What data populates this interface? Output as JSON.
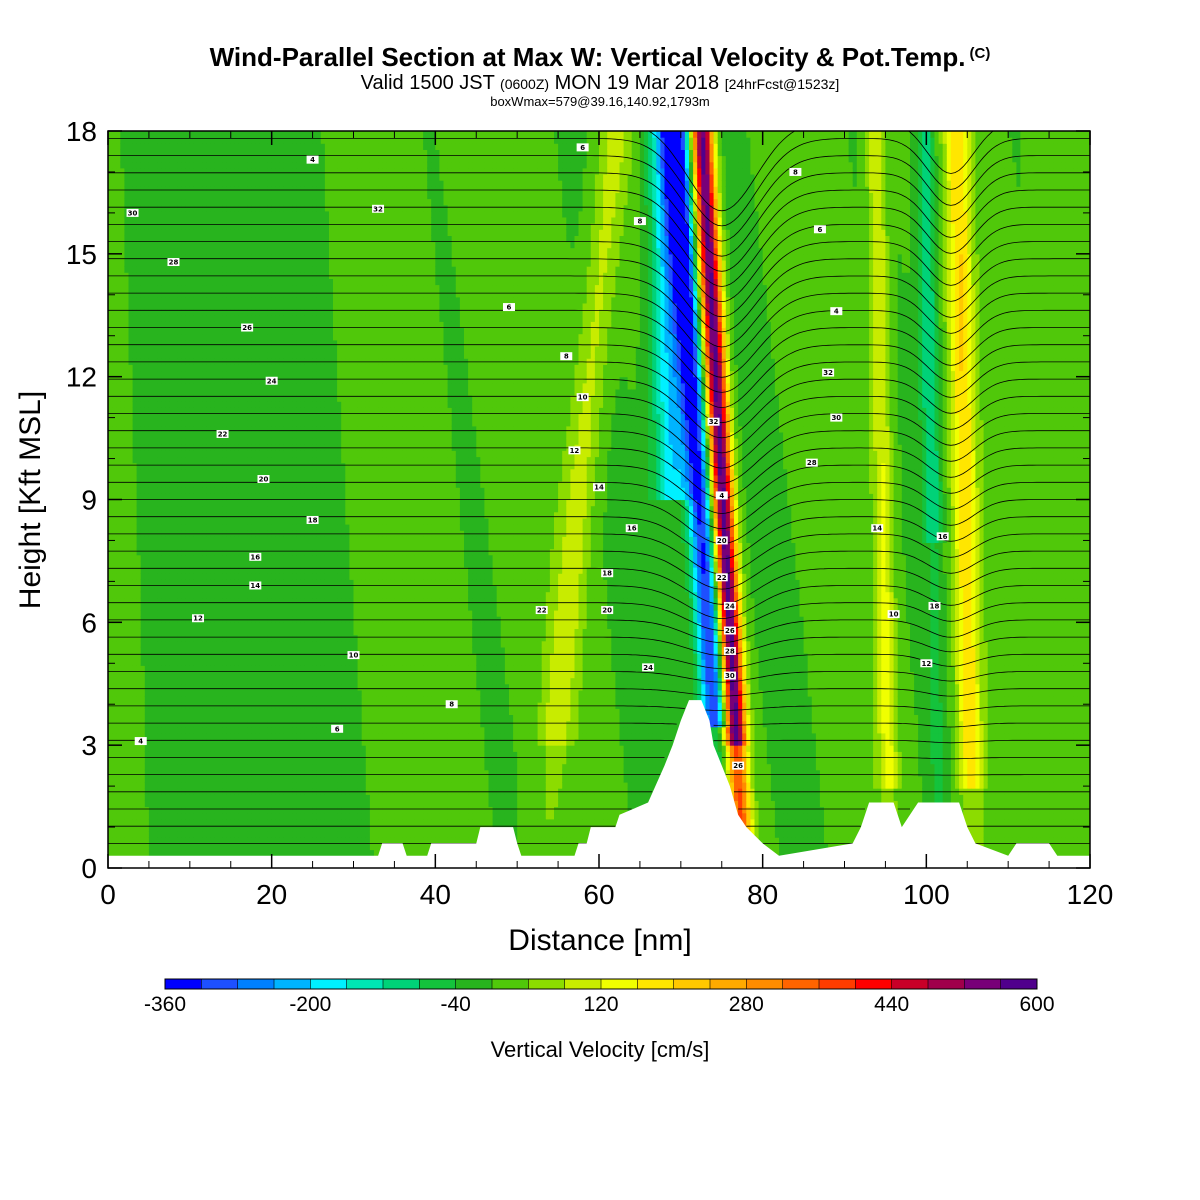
{
  "header": {
    "title": "Wind-Parallel Section at Max W: Vertical Velocity & Pot.Temp.",
    "copyright": "(C)",
    "valid_prefix": "Valid 1500 JST",
    "valid_z": "(0600Z)",
    "valid_date": "MON 19 Mar 2018",
    "forecast": "[24hrFcst@1523z]",
    "boxwmax": "boxWmax=579@39.16,140.92,1793m"
  },
  "chart_data": {
    "type": "heatmap",
    "xlabel": "Distance [nm]",
    "ylabel": "Height [Kft MSL]",
    "xlim": [
      0,
      120
    ],
    "ylim": [
      0,
      18
    ],
    "x_ticks": [
      0,
      20,
      40,
      60,
      80,
      100,
      120
    ],
    "y_ticks": [
      0,
      3,
      6,
      9,
      12,
      15,
      18
    ],
    "colorbar": {
      "title": "Vertical Velocity [cm/s]",
      "range": [
        -360,
        600
      ],
      "step": 40,
      "tick_labels": [
        -360,
        -200,
        -40,
        120,
        280,
        440,
        600
      ],
      "colors": [
        "#0000ff",
        "#1e50ff",
        "#0080ff",
        "#00b4ff",
        "#00f0ff",
        "#00e6b4",
        "#00d278",
        "#14c33c",
        "#28b41e",
        "#50c80a",
        "#8cdc00",
        "#c8ec00",
        "#f0ff00",
        "#ffe600",
        "#ffc800",
        "#ffaa00",
        "#ff8c00",
        "#ff6400",
        "#ff3c00",
        "#ff0000",
        "#c80028",
        "#a0004b",
        "#780078",
        "#50008c"
      ]
    },
    "terrain_nm_kft": [
      [
        0,
        0.3
      ],
      [
        33,
        0.3
      ],
      [
        33.5,
        0.6
      ],
      [
        36,
        0.6
      ],
      [
        36.5,
        0.3
      ],
      [
        39,
        0.3
      ],
      [
        39.5,
        0.6
      ],
      [
        45,
        0.6
      ],
      [
        45.5,
        1.0
      ],
      [
        49.5,
        1.0
      ],
      [
        50,
        0.6
      ],
      [
        50.5,
        0.3
      ],
      [
        57,
        0.3
      ],
      [
        57.5,
        0.6
      ],
      [
        58.5,
        0.6
      ],
      [
        59,
        1.0
      ],
      [
        62,
        1.0
      ],
      [
        62.5,
        1.3
      ],
      [
        66,
        1.6
      ],
      [
        68,
        2.5
      ],
      [
        69,
        3.0
      ],
      [
        70,
        3.6
      ],
      [
        71,
        4.1
      ],
      [
        72.5,
        4.1
      ],
      [
        73.5,
        3.6
      ],
      [
        74,
        3.0
      ],
      [
        75,
        2.5
      ],
      [
        76,
        2.0
      ],
      [
        77,
        1.3
      ],
      [
        78,
        1.0
      ],
      [
        80,
        0.6
      ],
      [
        82,
        0.3
      ],
      [
        91,
        0.6
      ],
      [
        92,
        1.0
      ],
      [
        93,
        1.6
      ],
      [
        96,
        1.6
      ],
      [
        97,
        1.0
      ],
      [
        98,
        1.3
      ],
      [
        99,
        1.6
      ],
      [
        104,
        1.6
      ],
      [
        105,
        1.0
      ],
      [
        106,
        0.6
      ],
      [
        110,
        0.3
      ],
      [
        111,
        0.6
      ],
      [
        115,
        0.6
      ],
      [
        116,
        0.3
      ],
      [
        120,
        0.3
      ]
    ],
    "ascent_band": {
      "strong_updraft_center_nm": 76.5,
      "strong_downdraft_center_nm": 74.0,
      "max_updraft_cms": 579,
      "max_downdraft_cms": -360
    },
    "theta_contours_label_values": [
      4,
      6,
      8,
      10,
      12,
      14,
      16,
      18,
      20,
      22,
      24,
      26,
      28,
      30,
      32
    ]
  }
}
